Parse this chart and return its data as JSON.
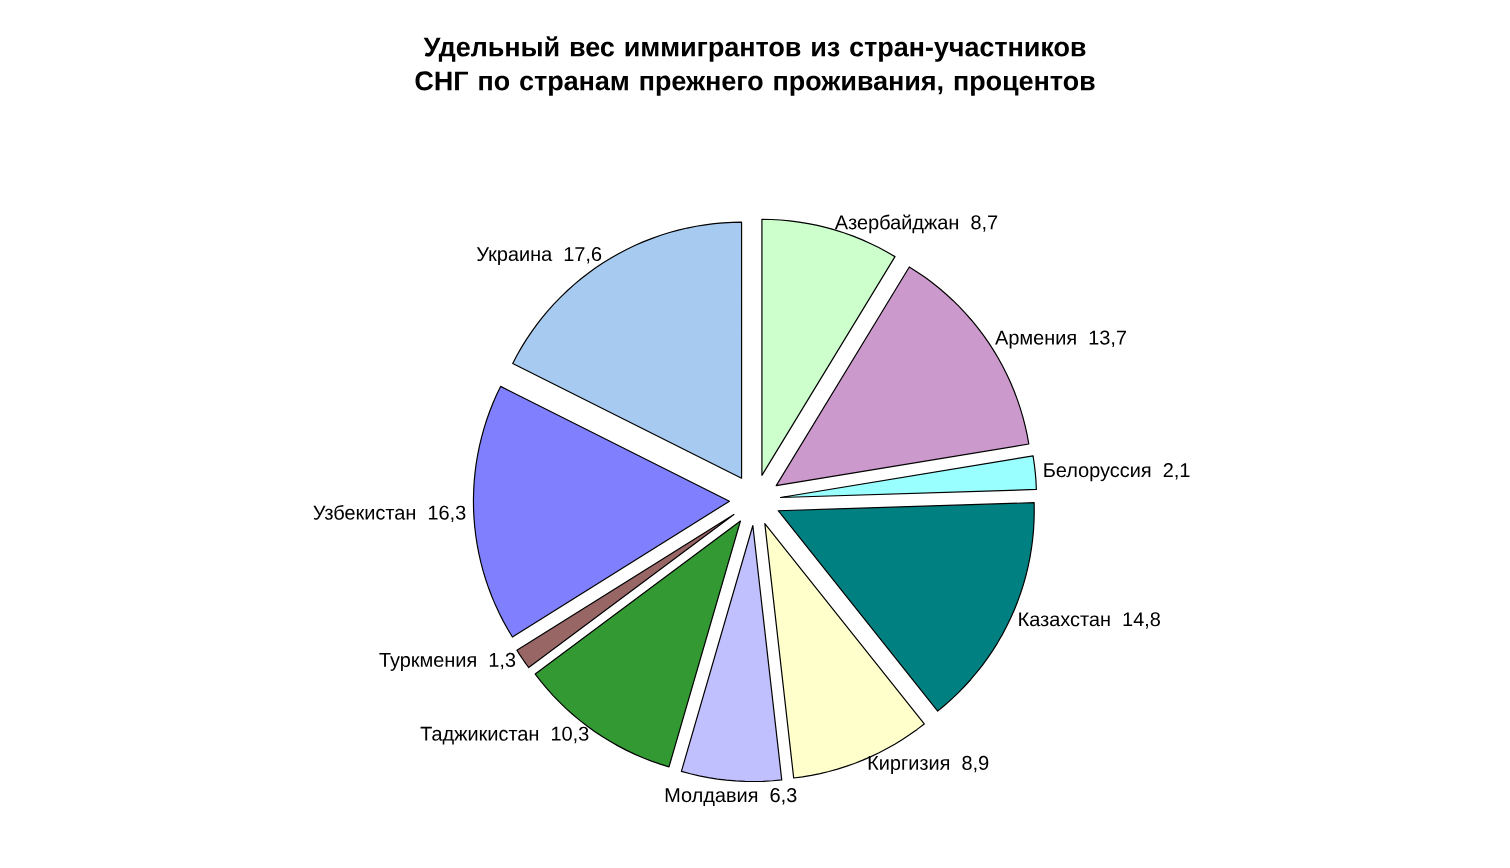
{
  "chart_data": {
    "type": "pie",
    "title": "Удельный вес иммигрантов из стран-участников СНГ по странам прежнего проживания, процентов",
    "categories": [
      "Азербайджан",
      "Армения",
      "Белоруссия",
      "Казахстан",
      "Киргизия",
      "Молдавия",
      "Таджикистан",
      "Туркмения",
      "Узбекистан",
      "Украина"
    ],
    "values": [
      8.7,
      13.7,
      2.1,
      14.8,
      8.9,
      6.3,
      10.3,
      1.3,
      16.3,
      17.6
    ],
    "value_labels": [
      "8,7",
      "13,7",
      "2,1",
      "14,8",
      "8,9",
      "6,3",
      "10,3",
      "1,3",
      "16,3",
      "17,6"
    ],
    "colors": [
      "#ccffcc",
      "#cc99cc",
      "#99ffff",
      "#008080",
      "#ffffcc",
      "#c0c0ff",
      "#339933",
      "#996666",
      "#8080ff",
      "#a6caf0"
    ]
  }
}
